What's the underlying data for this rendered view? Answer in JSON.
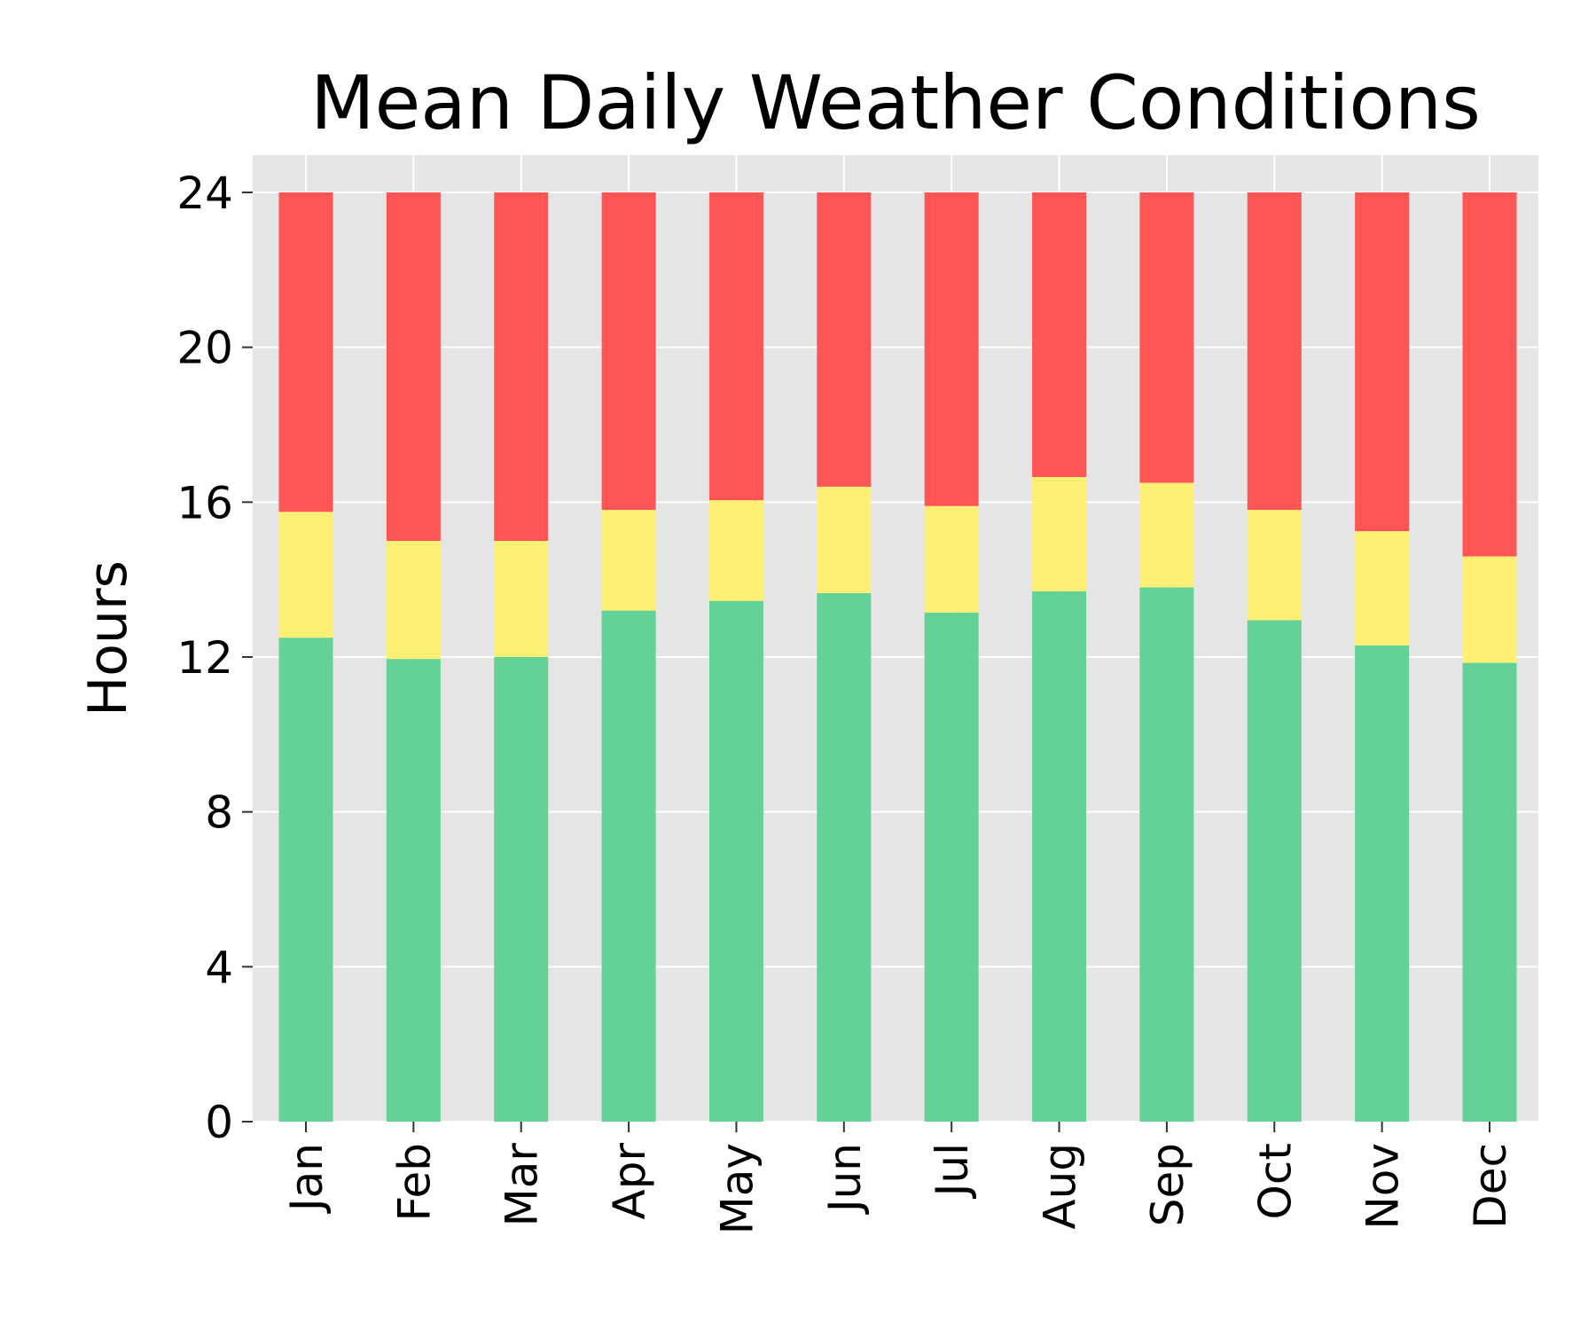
{
  "chart_data": {
    "type": "bar",
    "stacked": true,
    "title": "Mean Daily Weather Conditions",
    "xlabel": "",
    "ylabel": "Hours",
    "ylim": [
      0,
      25
    ],
    "yticks": [
      0,
      4,
      8,
      12,
      16,
      20,
      24
    ],
    "grid": true,
    "legend": "none",
    "categories": [
      "Jan",
      "Feb",
      "Mar",
      "Apr",
      "May",
      "Jun",
      "Jul",
      "Aug",
      "Sep",
      "Oct",
      "Nov",
      "Dec"
    ],
    "series": [
      {
        "color": "#64d296",
        "values": [
          12.5,
          11.95,
          12.0,
          13.2,
          13.45,
          13.65,
          13.15,
          13.7,
          13.8,
          12.95,
          12.3,
          11.85
        ]
      },
      {
        "color": "#fdf075",
        "values": [
          3.25,
          3.05,
          3.0,
          2.6,
          2.6,
          2.75,
          2.75,
          2.95,
          2.7,
          2.85,
          2.95,
          2.75
        ]
      },
      {
        "color": "#ff5555",
        "values": [
          8.25,
          9.0,
          9.0,
          8.2,
          7.95,
          7.6,
          8.1,
          7.35,
          7.5,
          8.2,
          8.75,
          9.4
        ]
      }
    ]
  },
  "style": {
    "panel_background": "#e5e5e5",
    "grid_color": "#ffffff"
  }
}
